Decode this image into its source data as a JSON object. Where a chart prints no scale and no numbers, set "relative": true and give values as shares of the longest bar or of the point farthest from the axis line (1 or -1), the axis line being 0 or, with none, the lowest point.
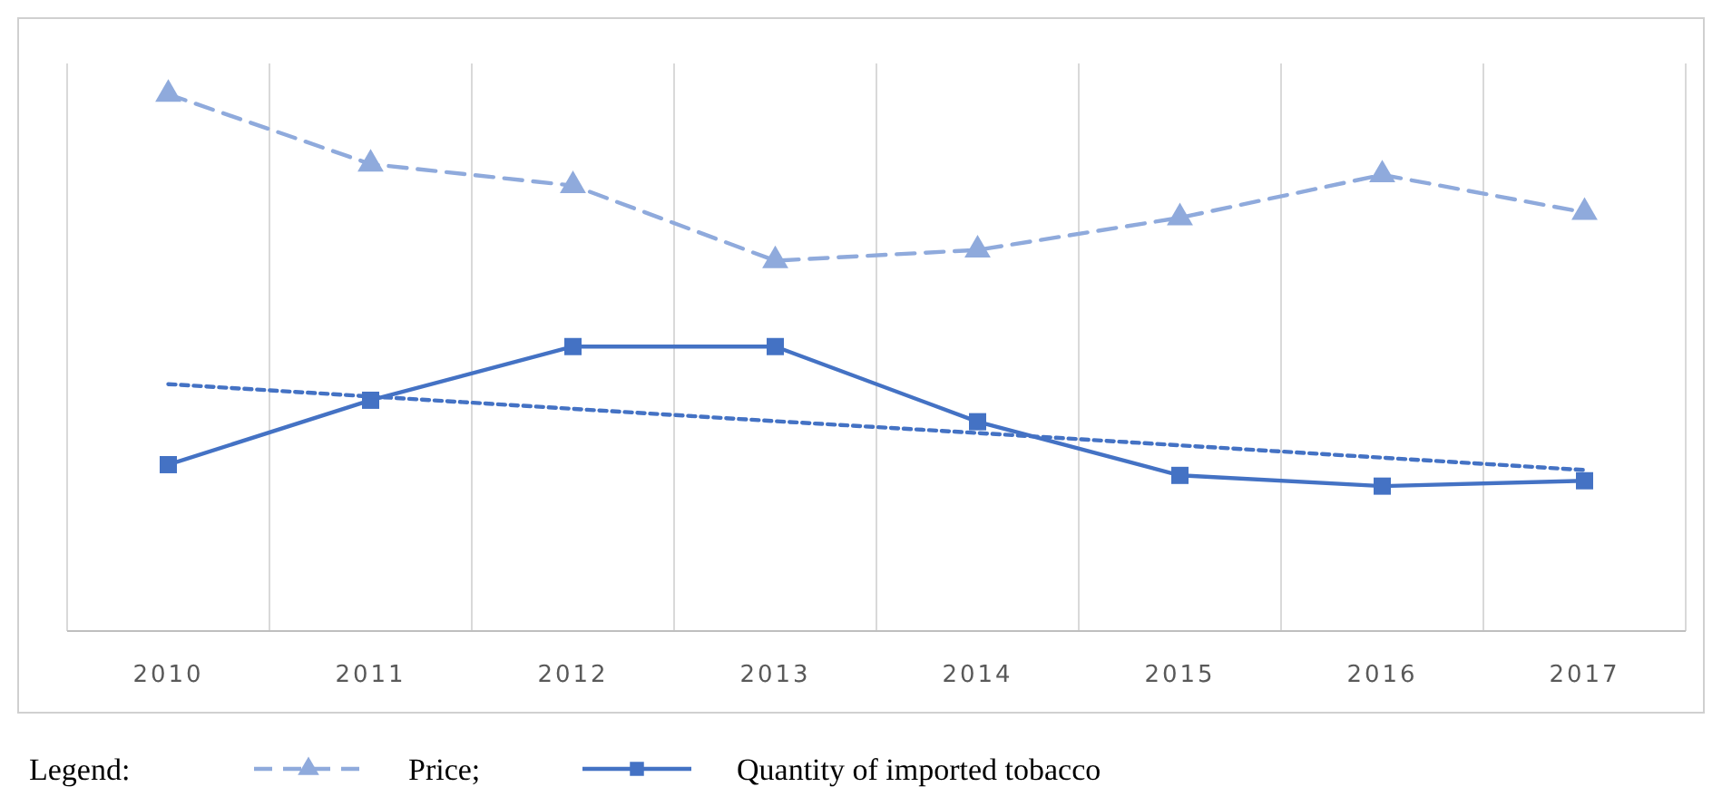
{
  "chart_data": {
    "type": "line",
    "relative": true,
    "categories": [
      "2010",
      "2011",
      "2012",
      "2013",
      "2014",
      "2015",
      "2016",
      "2017"
    ],
    "grid": "x",
    "legend": "bottom",
    "legend_title": "Legend:",
    "series": [
      {
        "name": "Price;",
        "color": "#8faadc",
        "values": [
          1,
          0.87,
          0.83,
          0.69,
          0.71,
          0.77,
          0.85,
          0.78
        ],
        "marker": "triangle",
        "line_style": "dashed"
      },
      {
        "name": "Quantity of imported tobacco",
        "color": "#4472c4",
        "values": [
          0.31,
          0.43,
          0.53,
          0.53,
          0.39,
          0.29,
          0.27,
          0.28
        ],
        "marker": "square",
        "line_style": "solid"
      },
      {
        "type": "line",
        "color": "#4472c4",
        "values": [
          0.46,
          0.437,
          0.414,
          0.391,
          0.369,
          0.346,
          0.323,
          0.3
        ],
        "marker": "none",
        "line_style": "dotted"
      }
    ]
  }
}
